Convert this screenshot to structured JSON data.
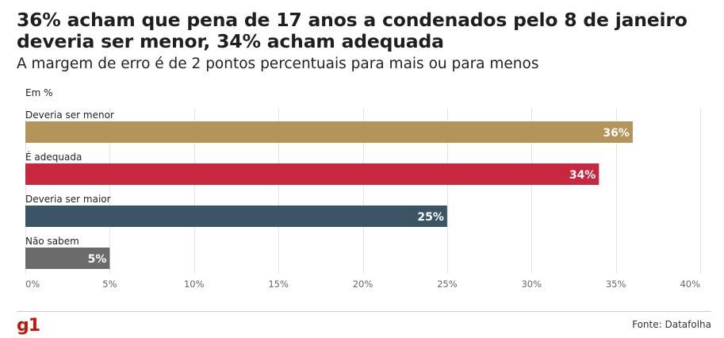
{
  "header": {
    "title": "36% acham que pena de 17 anos a condenados pelo 8 de janeiro deveria ser menor, 34% acham adequada",
    "subtitle": "A margem de erro é de 2 pontos percentuais para mais ou para menos"
  },
  "chart_data": {
    "type": "bar",
    "orientation": "horizontal",
    "unit_label": "Em %",
    "categories": [
      "Deveria ser menor",
      "É adequada",
      "Deveria ser maior",
      "Não sabem"
    ],
    "values": [
      36,
      34,
      25,
      5
    ],
    "value_labels": [
      "36%",
      "34%",
      "25%",
      "5%"
    ],
    "colors": [
      "#b5945b",
      "#c8283f",
      "#3a5563",
      "#6b6b6b"
    ],
    "xlim": [
      0,
      40
    ],
    "xticks": [
      0,
      5,
      10,
      15,
      20,
      25,
      30,
      35,
      40
    ],
    "xtick_labels": [
      "0%",
      "5%",
      "10%",
      "15%",
      "20%",
      "25%",
      "30%",
      "35%",
      "40%"
    ],
    "grid": true
  },
  "footer": {
    "logo": "g1",
    "source": "Fonte: Datafolha"
  }
}
